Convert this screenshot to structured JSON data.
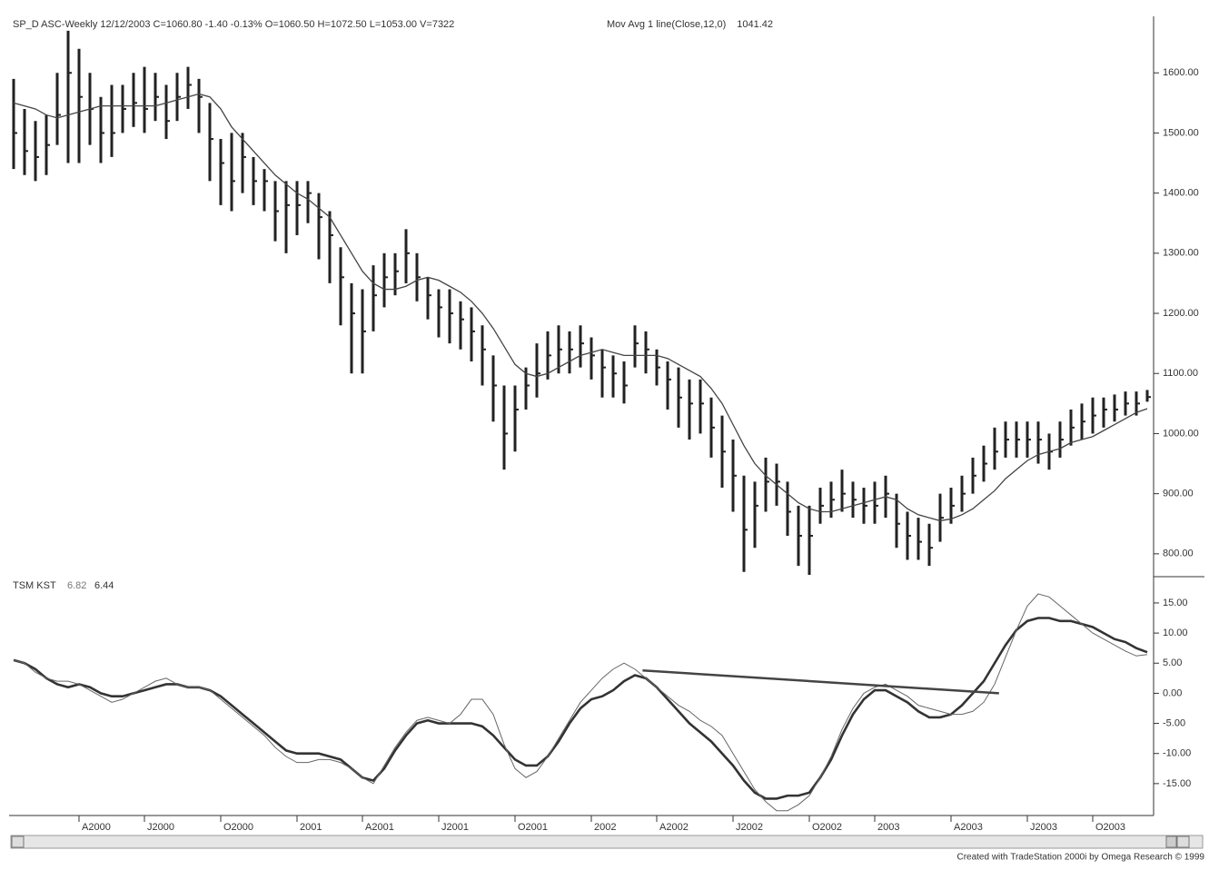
{
  "header": "SP_D ASC-Weekly  12/12/2003  C=1060.80  -1.40  -0.13%  O=1060.50  H=1072.50  L=1053.00  V=7322",
  "footer": "Created with TradeStation 2000i by Omega Research © 1999",
  "chart_data": [
    {
      "type": "ohlc",
      "color": "#222",
      "high": [
        1590,
        1540,
        1520,
        1530,
        1600,
        1670,
        1640,
        1600,
        1560,
        1580,
        1580,
        1600,
        1610,
        1600,
        1580,
        1600,
        1610,
        1590,
        1550,
        1490,
        1500,
        1500,
        1460,
        1440,
        1420,
        1420,
        1420,
        1420,
        1400,
        1370,
        1310,
        1250,
        1240,
        1280,
        1300,
        1300,
        1340,
        1300,
        1260,
        1240,
        1240,
        1220,
        1210,
        1180,
        1130,
        1080,
        1080,
        1110,
        1150,
        1170,
        1180,
        1170,
        1180,
        1160,
        1140,
        1130,
        1120,
        1180,
        1170,
        1140,
        1120,
        1110,
        1090,
        1090,
        1060,
        1030,
        990,
        930,
        920,
        960,
        950,
        920,
        880,
        880,
        910,
        920,
        940,
        920,
        910,
        920,
        930,
        900,
        870,
        860,
        850,
        900,
        910,
        930,
        960,
        980,
        1010,
        1020,
        1020,
        1020,
        1020,
        1000,
        1020,
        1040,
        1050,
        1060,
        1060,
        1065,
        1070,
        1070,
        1072.5
      ],
      "low": [
        1440,
        1430,
        1420,
        1430,
        1480,
        1450,
        1450,
        1480,
        1450,
        1460,
        1500,
        1510,
        1500,
        1520,
        1490,
        1520,
        1540,
        1500,
        1420,
        1380,
        1370,
        1400,
        1380,
        1370,
        1320,
        1300,
        1330,
        1350,
        1290,
        1250,
        1180,
        1100,
        1100,
        1170,
        1210,
        1230,
        1250,
        1220,
        1190,
        1160,
        1150,
        1140,
        1120,
        1080,
        1020,
        940,
        970,
        1040,
        1060,
        1090,
        1100,
        1100,
        1110,
        1090,
        1060,
        1060,
        1050,
        1110,
        1100,
        1080,
        1040,
        1010,
        990,
        1000,
        960,
        910,
        870,
        770,
        810,
        870,
        880,
        830,
        780,
        765,
        850,
        860,
        870,
        860,
        850,
        850,
        860,
        810,
        790,
        790,
        780,
        820,
        850,
        870,
        900,
        920,
        940,
        960,
        960,
        960,
        950,
        940,
        960,
        980,
        990,
        1000,
        1010,
        1020,
        1030,
        1030,
        1053
      ],
      "close": [
        1500,
        1470,
        1460,
        1480,
        1530,
        1600,
        1560,
        1540,
        1500,
        1500,
        1540,
        1550,
        1540,
        1560,
        1520,
        1560,
        1580,
        1560,
        1490,
        1450,
        1420,
        1460,
        1420,
        1420,
        1370,
        1380,
        1380,
        1400,
        1360,
        1330,
        1260,
        1200,
        1170,
        1230,
        1260,
        1270,
        1300,
        1260,
        1230,
        1210,
        1200,
        1190,
        1170,
        1140,
        1080,
        1000,
        1040,
        1080,
        1100,
        1130,
        1140,
        1140,
        1150,
        1130,
        1110,
        1100,
        1080,
        1150,
        1140,
        1110,
        1090,
        1060,
        1050,
        1050,
        1010,
        970,
        930,
        840,
        880,
        920,
        920,
        870,
        830,
        830,
        880,
        890,
        900,
        890,
        880,
        880,
        900,
        850,
        830,
        820,
        810,
        860,
        880,
        900,
        930,
        950,
        970,
        990,
        990,
        990,
        990,
        970,
        990,
        1010,
        1020,
        1030,
        1040,
        1040,
        1050,
        1050,
        1060.8
      ],
      "moving_average": {
        "name": "Mov Avg 1 line(Close,12,0)",
        "color": "#444",
        "values": [
          1550,
          1545,
          1540,
          1530,
          1525,
          1530,
          1535,
          1540,
          1545,
          1545,
          1545,
          1545,
          1545,
          1545,
          1550,
          1555,
          1560,
          1565,
          1560,
          1540,
          1510,
          1490,
          1470,
          1450,
          1430,
          1415,
          1400,
          1390,
          1375,
          1360,
          1330,
          1300,
          1270,
          1250,
          1240,
          1240,
          1245,
          1255,
          1260,
          1255,
          1245,
          1235,
          1220,
          1200,
          1175,
          1145,
          1115,
          1100,
          1095,
          1100,
          1110,
          1120,
          1130,
          1135,
          1140,
          1135,
          1130,
          1130,
          1130,
          1130,
          1125,
          1115,
          1105,
          1095,
          1075,
          1050,
          1015,
          980,
          950,
          930,
          915,
          900,
          885,
          875,
          870,
          870,
          875,
          880,
          885,
          890,
          895,
          890,
          875,
          865,
          860,
          855,
          858,
          865,
          875,
          890,
          905,
          925,
          940,
          955,
          965,
          970,
          975,
          985,
          990,
          995,
          1005,
          1015,
          1025,
          1035,
          1041.42
        ]
      },
      "ylim": [
        762,
        1694
      ],
      "yticks": [
        {
          "value": 800,
          "label": "800.00"
        },
        {
          "value": 900,
          "label": "900.00"
        },
        {
          "value": 1000,
          "label": "1000.00"
        },
        {
          "value": 1100,
          "label": "1100.00"
        },
        {
          "value": 1200,
          "label": "1200.00"
        },
        {
          "value": 1300,
          "label": "1300.00"
        },
        {
          "value": 1400,
          "label": "1400.00"
        },
        {
          "value": 1500,
          "label": "1500.00"
        },
        {
          "value": 1600,
          "label": "1600.00"
        }
      ]
    },
    {
      "type": "line",
      "title": "TSM KST",
      "categories": [
        null,
        null,
        null,
        null,
        null,
        null,
        "A2000",
        null,
        null,
        null,
        null,
        null,
        "J2000",
        null,
        null,
        null,
        null,
        null,
        null,
        "O2000",
        null,
        null,
        null,
        null,
        null,
        null,
        "2001",
        null,
        null,
        null,
        null,
        null,
        "A2001",
        null,
        null,
        null,
        null,
        null,
        null,
        "J2001",
        null,
        null,
        null,
        null,
        null,
        null,
        "O2001",
        null,
        null,
        null,
        null,
        null,
        null,
        "2002",
        null,
        null,
        null,
        null,
        null,
        "A2002",
        null,
        null,
        null,
        null,
        null,
        null,
        "J2002",
        null,
        null,
        null,
        null,
        null,
        null,
        "O2002",
        null,
        null,
        null,
        null,
        null,
        "2003",
        null,
        null,
        null,
        null,
        null,
        null,
        "A2003",
        null,
        null,
        null,
        null,
        null,
        null,
        "J2003",
        null,
        null,
        null,
        null,
        null,
        "O2003",
        null,
        null,
        null,
        null,
        null
      ],
      "series": [
        {
          "color": "#333",
          "width": 2.6,
          "values": [
            5.5,
            5,
            4,
            2.5,
            1.5,
            1,
            1.5,
            1,
            0,
            -0.5,
            -0.5,
            0,
            0.5,
            1,
            1.5,
            1.5,
            1,
            1,
            0.5,
            -0.5,
            -2,
            -3.5,
            -5,
            -6.5,
            -8,
            -9.5,
            -10,
            -10,
            -10,
            -10.5,
            -11,
            -12.5,
            -14,
            -14.5,
            -12.5,
            -9.5,
            -7,
            -5,
            -4.5,
            -5,
            -5,
            -5,
            -5,
            -5.5,
            -7,
            -9,
            -11,
            -12,
            -12,
            -10.5,
            -8,
            -5,
            -2.5,
            -1,
            -0.5,
            0.5,
            2,
            3,
            2.5,
            1,
            -1,
            -3,
            -5,
            -6.5,
            -8,
            -10,
            -12,
            -14.5,
            -16.5,
            -17.5,
            -17.5,
            -17,
            -17,
            -16.5,
            -14,
            -11,
            -7,
            -3.5,
            -1,
            0.5,
            0.5,
            -0.5,
            -1.5,
            -3,
            -4,
            -4,
            -3.5,
            -2,
            0,
            2,
            5,
            8,
            10.5,
            12,
            12.5,
            12.5,
            12,
            12,
            11.5,
            11,
            10,
            9,
            8.5,
            7.5,
            6.82
          ]
        },
        {
          "color": "#666",
          "width": 1,
          "values": [
            5.5,
            5,
            3.5,
            2.5,
            2,
            2,
            1.5,
            0.5,
            -0.5,
            -1.5,
            -1,
            0,
            1,
            2,
            2.5,
            1.5,
            1,
            1,
            0.5,
            -1,
            -2.5,
            -4,
            -5.5,
            -7,
            -9,
            -10.5,
            -11.5,
            -11.5,
            -11,
            -11,
            -11.5,
            -12.5,
            -14,
            -15,
            -12,
            -9,
            -6.5,
            -4.5,
            -4,
            -4.5,
            -5,
            -3.5,
            -1,
            -1,
            -3.5,
            -8.5,
            -12.5,
            -14,
            -13,
            -10.5,
            -7.5,
            -4.5,
            -1.5,
            0.5,
            2.5,
            4,
            5,
            4,
            2.5,
            1,
            -0.5,
            -2,
            -3,
            -4.5,
            -5.5,
            -7,
            -10,
            -13,
            -16,
            -18,
            -19.5,
            -19.5,
            -18.5,
            -17,
            -14,
            -10.5,
            -6,
            -2.5,
            0,
            1,
            1.5,
            0.5,
            -0.5,
            -2,
            -2.5,
            -3,
            -3.5,
            -3.5,
            -3,
            -1.5,
            1.5,
            6,
            10.5,
            14.5,
            16.5,
            16,
            14.5,
            13,
            11.5,
            10,
            9,
            8,
            7,
            6.2,
            6.44
          ]
        }
      ],
      "trend_line": {
        "x": [
          57.7,
          90.4
        ],
        "y": [
          3.8,
          0
        ]
      },
      "ylim": [
        -20.3,
        16.8
      ],
      "yticks": [
        {
          "value": -15,
          "label": "-15.00"
        },
        {
          "value": -10,
          "label": "-10.00"
        },
        {
          "value": -5,
          "label": "-5.00"
        },
        {
          "value": 0,
          "label": "0.00"
        },
        {
          "value": 5,
          "label": "5.00"
        },
        {
          "value": 10,
          "label": "10.00"
        },
        {
          "value": 15,
          "label": "15.00"
        }
      ]
    }
  ]
}
